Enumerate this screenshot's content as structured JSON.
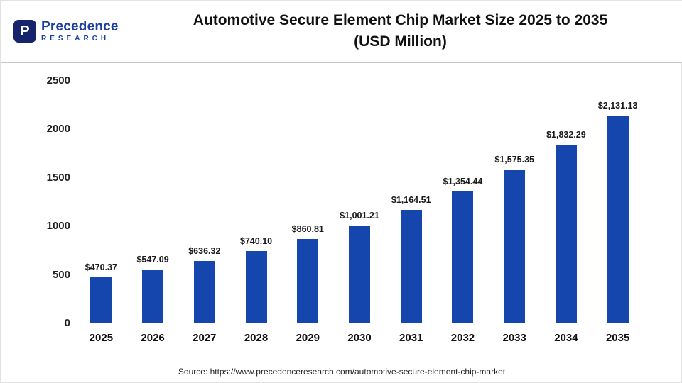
{
  "logo": {
    "icon_letter": "P",
    "name": "Precedence",
    "sub": "RESEARCH"
  },
  "header": {
    "title_line1": "Automotive Secure Element Chip Market Size 2025 to 2035",
    "title_line2": "(USD Million)"
  },
  "chart_data": {
    "type": "bar",
    "title": "Automotive Secure Element Chip Market Size 2025 to 2035 (USD Million)",
    "categories": [
      "2025",
      "2026",
      "2027",
      "2028",
      "2029",
      "2030",
      "2031",
      "2032",
      "2033",
      "2034",
      "2035"
    ],
    "values": [
      470.37,
      547.09,
      636.32,
      740.1,
      860.81,
      1001.21,
      1164.51,
      1354.44,
      1575.35,
      1832.29,
      2131.13
    ],
    "value_labels": [
      "$470.37",
      "$547.09",
      "$636.32",
      "$740.10",
      "$860.81",
      "$1,001.21",
      "$1,164.51",
      "$1,354.44",
      "$1,575.35",
      "$1,832.29",
      "$2,131.13"
    ],
    "xlabel": "",
    "ylabel": "",
    "ylim": [
      0,
      2500
    ],
    "yticks": [
      0,
      500,
      1000,
      1500,
      2000,
      2500
    ],
    "ytick_labels": [
      "0",
      "500",
      "1000",
      "1500",
      "2000",
      "2500"
    ],
    "grid": false,
    "legend_position": "none",
    "bar_color": "#1546ad"
  },
  "footer": {
    "source": "Source: https://www.precedenceresearch.com/automotive-secure-element-chip-market"
  }
}
